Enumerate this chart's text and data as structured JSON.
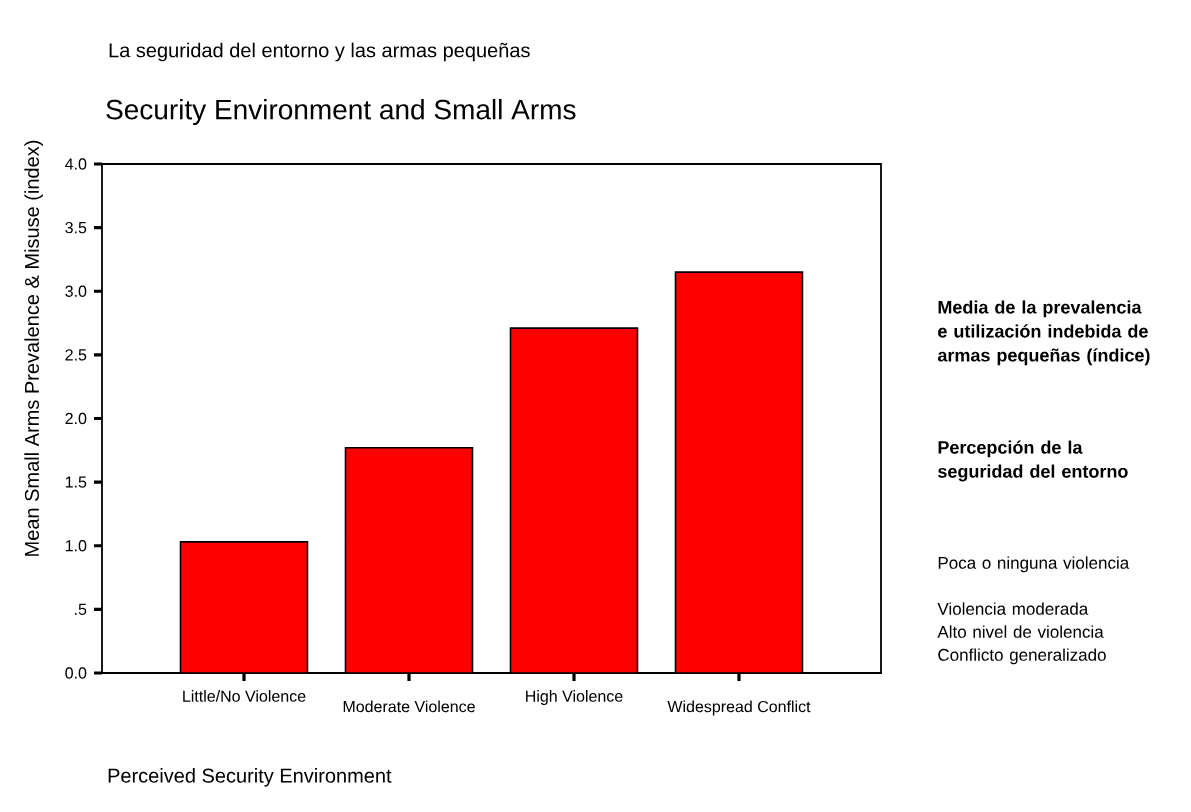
{
  "chart_data": {
    "type": "bar",
    "title": "Security Environment and Small Arms",
    "xlabel": "Perceived Security Environment",
    "ylabel": "Mean Small Arms Prevalence & Misuse (index)",
    "categories": [
      "Little/No Violence",
      "Moderate Violence",
      "High Violence",
      "Widespread Conflict"
    ],
    "values": [
      1.03,
      1.77,
      2.71,
      3.15
    ],
    "color": "#ff0000",
    "ylim": [
      0,
      4
    ],
    "yticks": [
      {
        "value": 0,
        "label": "0.0"
      },
      {
        "value": 0.5,
        "label": ".5"
      },
      {
        "value": 1,
        "label": "1.0"
      },
      {
        "value": 1.5,
        "label": "1.5"
      },
      {
        "value": 2,
        "label": "2.0"
      },
      {
        "value": 2.5,
        "label": "2.5"
      },
      {
        "value": 3,
        "label": "3.0"
      },
      {
        "value": 3.5,
        "label": "3.5"
      },
      {
        "value": 4,
        "label": "4.0"
      }
    ],
    "annotations": [
      "La seguridad del entorno y las armas pequeñas",
      "Media de la prevalencia e utilización indebida de armas pequeñas (índice)",
      "Percepción de la seguridad del entorno",
      "Poca o ninguna violencia",
      "Violencia moderada",
      "Alto nivel de violencia",
      "Conflicto generalizado"
    ]
  }
}
